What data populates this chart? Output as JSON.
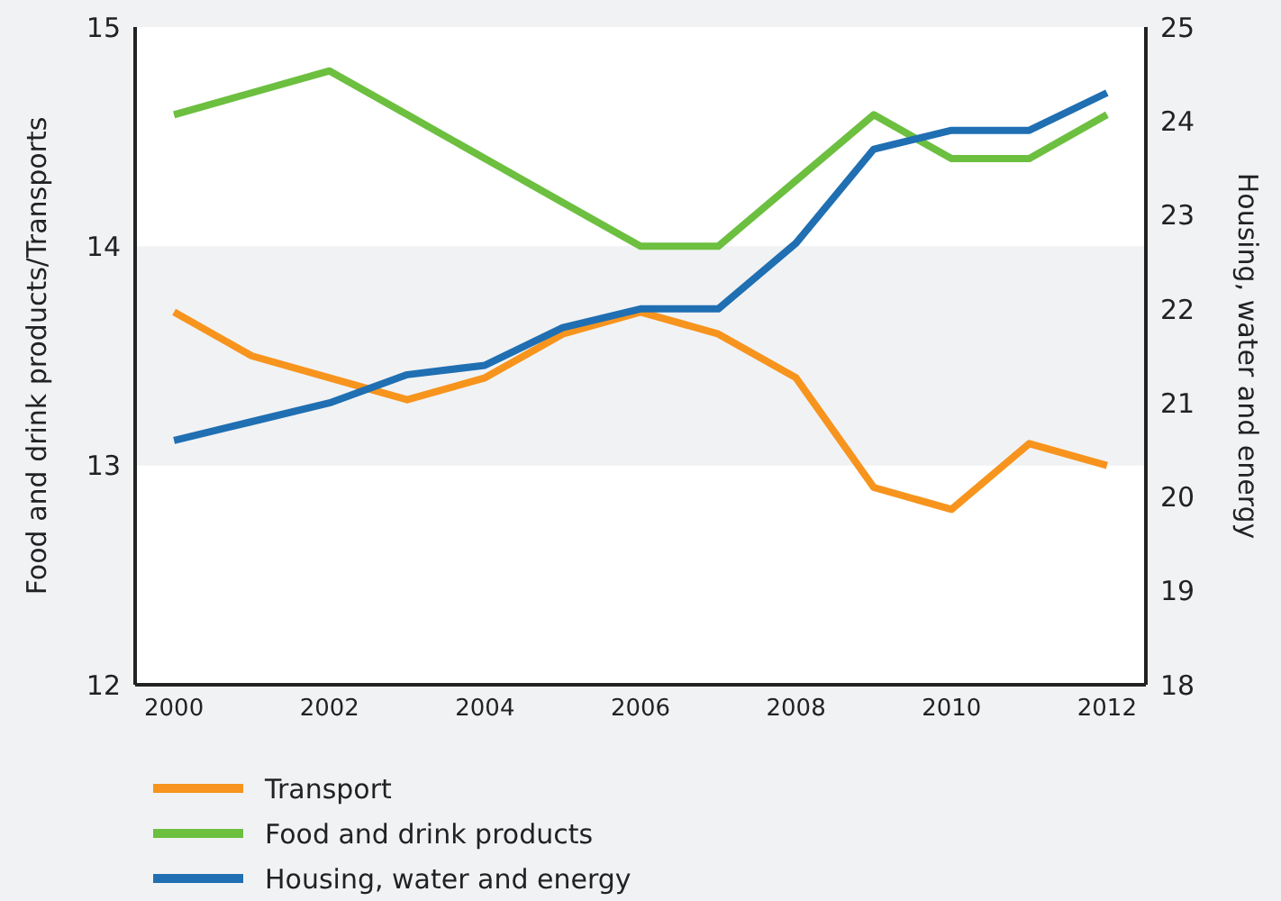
{
  "chart_data": {
    "type": "line",
    "xlabel": null,
    "ylabel": "Food and drink products/Transports",
    "y2label": "Housing, water and energy",
    "x": [
      2000,
      2001,
      2002,
      2003,
      2004,
      2005,
      2006,
      2007,
      2008,
      2009,
      2010,
      2011,
      2012
    ],
    "series": [
      {
        "name": "Transport",
        "color": "#f7941d",
        "values": [
          13.7,
          13.5,
          13.4,
          13.3,
          13.4,
          13.6,
          13.7,
          13.6,
          13.4,
          12.9,
          12.8,
          13.1,
          13.0
        ]
      },
      {
        "name": "Food and drink products",
        "color": "#6cbf3f",
        "values": [
          14.6,
          14.7,
          14.8,
          14.6,
          14.4,
          14.2,
          14.0,
          14.0,
          14.3,
          14.6,
          14.4,
          14.4,
          14.6
        ]
      },
      {
        "name": "Housing, water and energy",
        "color": "#1f6fb2",
        "axis": "y2",
        "values": [
          20.6,
          20.8,
          21.0,
          21.3,
          21.4,
          21.8,
          22.0,
          22.0,
          22.7,
          23.7,
          23.9,
          23.9,
          24.3
        ]
      }
    ],
    "xlim": [
      1999.5,
      2012.5
    ],
    "xticks": [
      2000,
      2002,
      2004,
      2006,
      2008,
      2010,
      2012
    ],
    "ylim": [
      12,
      15
    ],
    "yticks": [
      12,
      13,
      14,
      15
    ],
    "y2lim": [
      18,
      25
    ],
    "y2ticks": [
      18,
      19,
      20,
      21,
      22,
      23,
      24,
      25
    ],
    "bands": [
      {
        "axis": "y",
        "from": 13,
        "to": 14,
        "color": "#f1f2f4"
      }
    ],
    "grid": false,
    "legend": "bottom",
    "marker": "none",
    "line_style": "solid"
  }
}
